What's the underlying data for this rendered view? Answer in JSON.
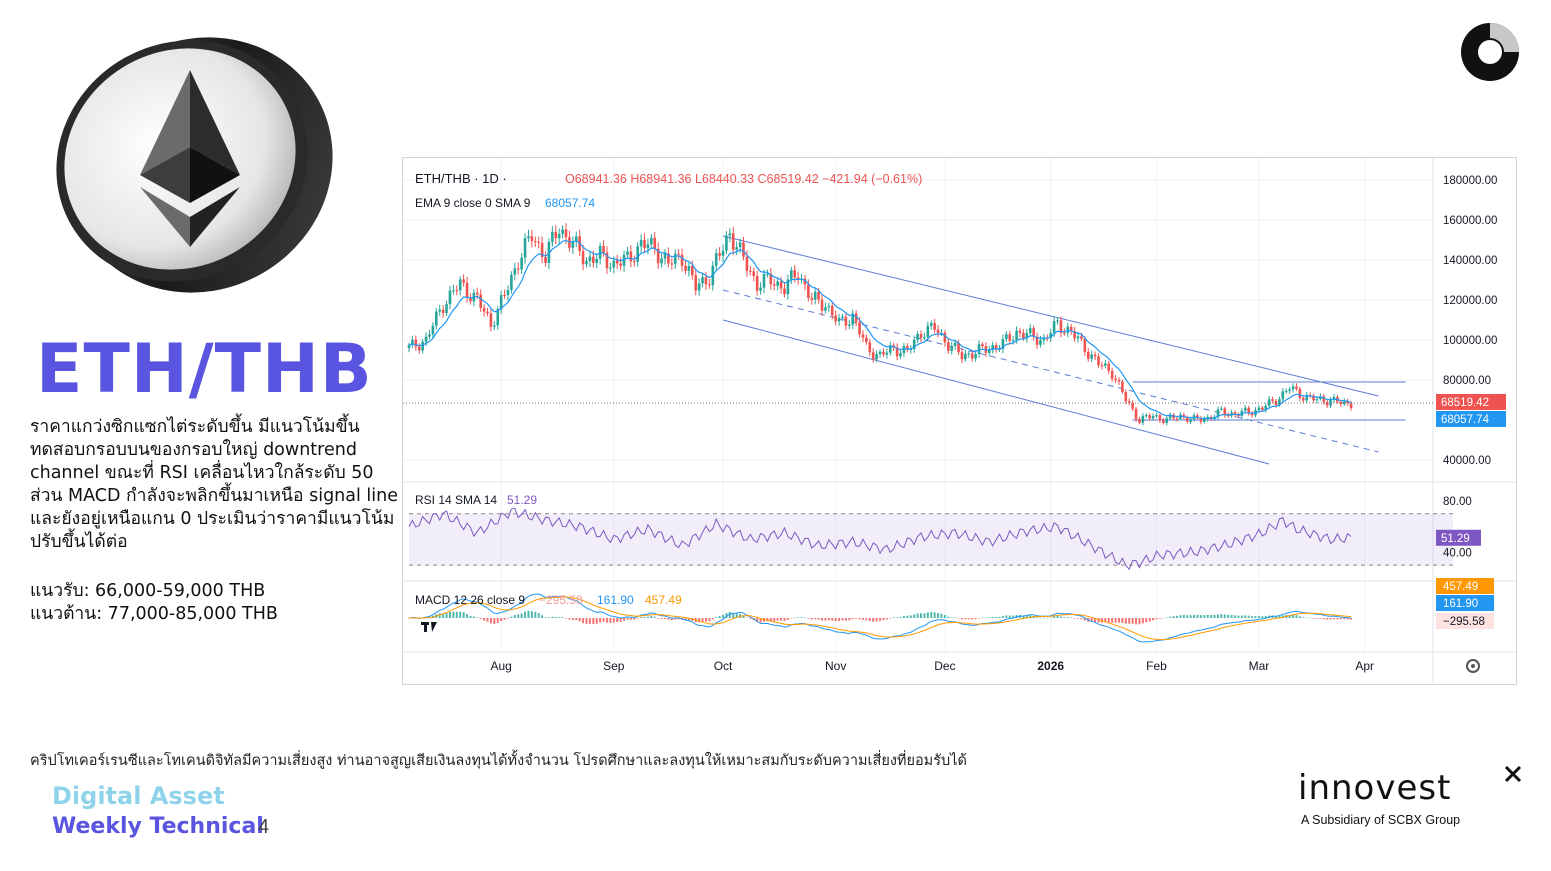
{
  "header": {
    "title": "ETH/THB"
  },
  "description": "ราคาแกว่งซิกแซกไต่ระดับขึ้น มีแนวโน้มขึ้น ทดสอบกรอบบนของกรอบใหญ่ downtrend channel ขณะที่ RSI เคลื่อนไหวใกล้ระดับ 50 ส่วน MACD กำลังจะพลิกขึ้นมาเหนือ signal line และยังอยู่เหนือแกน 0 ประเมินว่าราคามีแนวโน้มปรับขึ้นได้ต่อ",
  "levels": {
    "support": "แนวรับ: 66,000-59,000 THB",
    "resistance": "แนวต้าน: 77,000-85,000 THB"
  },
  "disclaimer": "คริปโทเคอร์เรนซีและโทเคนดิจิทัลมีความเสี่ยงสูง ท่านอาจสูญเสียเงินลงทุนได้ทั้งจำนวน โปรดศึกษาและลงทุนให้เหมาะสมกับระดับความเสี่ยงที่ยอมรับได้",
  "footer": {
    "line1": "Digital Asset",
    "line2": "Weekly Technical",
    "page": "4"
  },
  "brand": {
    "name": "innovest",
    "subtitle": "A Subsidiary of SCBX Group"
  },
  "icons": {
    "coin": "ethereum-coin-icon",
    "corner": "donut-logo-icon",
    "tv": "tradingview-logo-icon",
    "settings": "gear-icon"
  },
  "colors": {
    "accent": "#5a55e0",
    "accent_light": "#8fd3ea",
    "up": "#26a69a",
    "down": "#ef5350",
    "ema": "#2196f3",
    "channel": "#5b7bd5",
    "rsi": "#7e57c2",
    "macd_signal": "#ff9800"
  },
  "chart_data": {
    "type": "candlestick",
    "legend": {
      "symbol": "ETH/THB · 1D · ",
      "ohlc": "O68941.36 H68941.36 L68440.33 C68519.42 −421.94 (−0.61%)",
      "ema": "EMA 9 close 0 SMA 9",
      "ema_value": "68057.74",
      "rsi": "RSI 14 SMA 14",
      "rsi_value": "51.29",
      "macd": "MACD 12 26 close 9",
      "macd_hist": "−295.58",
      "macd_value": "161.90",
      "macd_signal": "457.49"
    },
    "x_labels": [
      "Aug",
      "Sep",
      "Oct",
      "Nov",
      "Dec",
      "2026",
      "Feb",
      "Mar",
      "Apr"
    ],
    "x_label_day": [
      27,
      60,
      92,
      125,
      157,
      188,
      219,
      249,
      280
    ],
    "price_axis": [
      "180000.00",
      "160000.00",
      "140000.00",
      "120000.00",
      "100000.00",
      "80000.00",
      "40000.00"
    ],
    "price_axis_values": [
      180000,
      160000,
      140000,
      120000,
      100000,
      80000,
      40000
    ],
    "price_tags": {
      "last": "68519.42",
      "ema": "68057.74"
    },
    "rsi_axis": [
      "80.00",
      "40.00"
    ],
    "rsi_axis_values": [
      80,
      40
    ],
    "rsi_tag": "51.29",
    "macd_tags": {
      "signal": "457.49",
      "macd": "161.90",
      "hist": "−295.58"
    },
    "ylim": [
      30000,
      185000
    ],
    "last_close": 68519.42,
    "ema_last": 68057.74,
    "price_path": [
      [
        0,
        96000
      ],
      [
        5,
        100000
      ],
      [
        10,
        118000
      ],
      [
        15,
        128000
      ],
      [
        20,
        120000
      ],
      [
        24,
        108000
      ],
      [
        28,
        122000
      ],
      [
        32,
        140000
      ],
      [
        36,
        152000
      ],
      [
        40,
        142000
      ],
      [
        44,
        156000
      ],
      [
        48,
        148000
      ],
      [
        52,
        140000
      ],
      [
        56,
        142000
      ],
      [
        60,
        138000
      ],
      [
        64,
        140000
      ],
      [
        68,
        148000
      ],
      [
        72,
        146000
      ],
      [
        76,
        138000
      ],
      [
        80,
        142000
      ],
      [
        84,
        126000
      ],
      [
        88,
        132000
      ],
      [
        92,
        146000
      ],
      [
        94,
        154000
      ],
      [
        98,
        140000
      ],
      [
        102,
        128000
      ],
      [
        106,
        130000
      ],
      [
        110,
        126000
      ],
      [
        114,
        134000
      ],
      [
        118,
        120000
      ],
      [
        122,
        118000
      ],
      [
        126,
        108000
      ],
      [
        130,
        112000
      ],
      [
        134,
        96000
      ],
      [
        138,
        92000
      ],
      [
        142,
        96000
      ],
      [
        146,
        94000
      ],
      [
        150,
        104000
      ],
      [
        154,
        106000
      ],
      [
        158,
        98000
      ],
      [
        162,
        92000
      ],
      [
        166,
        94000
      ],
      [
        170,
        96000
      ],
      [
        174,
        98000
      ],
      [
        178,
        104000
      ],
      [
        182,
        102000
      ],
      [
        186,
        100000
      ],
      [
        190,
        108000
      ],
      [
        194,
        104000
      ],
      [
        198,
        96000
      ],
      [
        202,
        88000
      ],
      [
        206,
        84000
      ],
      [
        210,
        70000
      ],
      [
        214,
        60000
      ],
      [
        218,
        62000
      ],
      [
        222,
        60000
      ],
      [
        226,
        62000
      ],
      [
        230,
        60000
      ],
      [
        234,
        61000
      ],
      [
        238,
        64000
      ],
      [
        242,
        63000
      ],
      [
        246,
        64000
      ],
      [
        250,
        66000
      ],
      [
        254,
        70000
      ],
      [
        258,
        76000
      ],
      [
        262,
        72000
      ],
      [
        266,
        70000
      ],
      [
        270,
        70000
      ],
      [
        274,
        68000
      ],
      [
        276,
        68519
      ]
    ],
    "rsi_path": [
      [
        0,
        60
      ],
      [
        10,
        70
      ],
      [
        20,
        55
      ],
      [
        30,
        72
      ],
      [
        40,
        65
      ],
      [
        50,
        60
      ],
      [
        60,
        50
      ],
      [
        70,
        58
      ],
      [
        80,
        45
      ],
      [
        90,
        62
      ],
      [
        100,
        50
      ],
      [
        110,
        55
      ],
      [
        120,
        45
      ],
      [
        130,
        48
      ],
      [
        140,
        42
      ],
      [
        150,
        52
      ],
      [
        160,
        55
      ],
      [
        170,
        48
      ],
      [
        180,
        56
      ],
      [
        190,
        60
      ],
      [
        200,
        45
      ],
      [
        210,
        30
      ],
      [
        214,
        32
      ],
      [
        220,
        38
      ],
      [
        230,
        40
      ],
      [
        240,
        46
      ],
      [
        250,
        55
      ],
      [
        256,
        65
      ],
      [
        260,
        58
      ],
      [
        270,
        50
      ],
      [
        276,
        51.29
      ]
    ],
    "rsi_band": [
      30,
      70
    ],
    "rsi_ylim": [
      20,
      90
    ],
    "channel_outer_upper": [
      [
        92,
        152000
      ],
      [
        284,
        72000
      ]
    ],
    "channel_outer_lower": [
      [
        92,
        110000
      ],
      [
        252,
        38000
      ]
    ],
    "channel_mid": [
      [
        92,
        125000
      ],
      [
        284,
        44000
      ]
    ],
    "range_box": [
      [
        212,
        79000
      ],
      [
        292,
        79000
      ],
      [
        212,
        60000
      ],
      [
        292,
        60000
      ]
    ]
  }
}
